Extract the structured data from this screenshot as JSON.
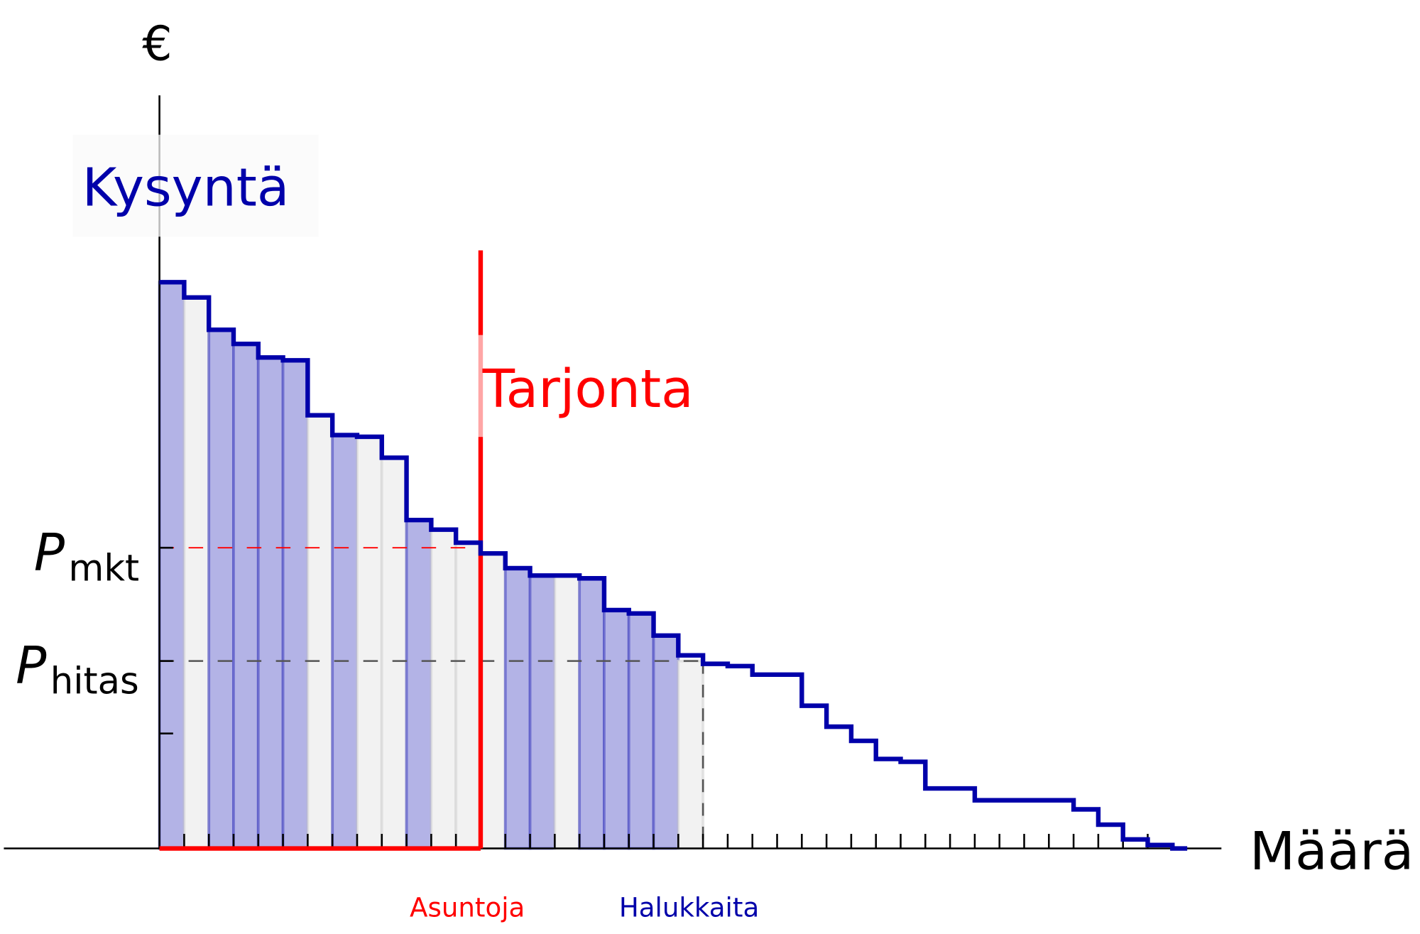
{
  "chart_data": {
    "type": "step",
    "ylabel": "€",
    "xlabel": "Määrä",
    "demand_label": "Kysyntä",
    "supply_label": "Tarjonta",
    "price_labels": {
      "mkt": {
        "main": "P",
        "sub": "mkt",
        "value": 53.1
      },
      "hitas": {
        "main": "P",
        "sub": "hitas",
        "value": 33.1
      }
    },
    "extra_ytick": 20.3,
    "supply_quantity": 13,
    "hitas_quantity": 22,
    "quantity_labels": {
      "supply": "Asuntoja",
      "demand": "Halukkaita"
    },
    "xlim": [
      0,
      43
    ],
    "ylim": [
      0,
      133
    ],
    "xticks": 40,
    "demand_steps": [
      100,
      97.3,
      91.6,
      89.1,
      86.7,
      86.2,
      76.5,
      73.0,
      72.7,
      69.0,
      58.0,
      56.3,
      54.0,
      52.1,
      49.5,
      48.2,
      48.2,
      47.7,
      42.1,
      41.5,
      37.6,
      34.1,
      32.6,
      32.2,
      30.7,
      30.7,
      25.2,
      21.5,
      19.0,
      15.8,
      15.3,
      10.6,
      10.6,
      8.5,
      8.5,
      8.5,
      8.5,
      6.9,
      4.2,
      1.6,
      0.6,
      0
    ],
    "bar_fills": [
      "blue",
      "grey",
      "blue",
      "blue",
      "blue",
      "blue",
      "grey",
      "blue",
      "grey",
      "grey",
      "blue",
      "grey",
      "grey",
      "grey",
      "blue",
      "blue",
      "grey",
      "blue",
      "blue",
      "blue",
      "blue",
      "grey"
    ],
    "colors": {
      "demand": "#0000aa",
      "supply": "#ff0000",
      "bar_blue": "#b3b3e6",
      "bar_grey": "#f2f2f2",
      "hitas_line": "#555555",
      "axis": "#000000"
    }
  }
}
